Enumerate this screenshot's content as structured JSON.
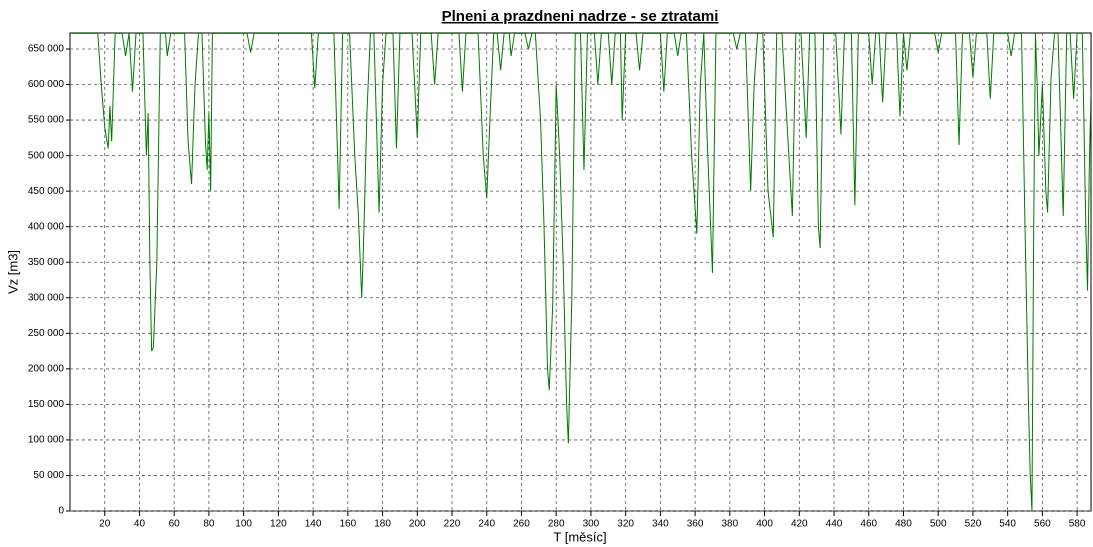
{
  "chart_data": {
    "type": "line",
    "title": "Plneni a prazdneni nadrze - se ztratami",
    "x_label": "T [měsíc]",
    "y_label": "Vz [m3]",
    "xlim": [
      0,
      588
    ],
    "ylim": [
      0,
      672500
    ],
    "xticks": [
      20,
      40,
      60,
      80,
      100,
      120,
      140,
      160,
      180,
      200,
      220,
      240,
      260,
      280,
      300,
      320,
      340,
      360,
      380,
      400,
      420,
      440,
      460,
      480,
      500,
      520,
      540,
      560,
      580
    ],
    "yticks": [
      {
        "value": 0,
        "label": "0"
      },
      {
        "value": 50000,
        "label": "50 000"
      },
      {
        "value": 100000,
        "label": "100 000"
      },
      {
        "value": 150000,
        "label": "150 000"
      },
      {
        "value": 200000,
        "label": "200 000"
      },
      {
        "value": 250000,
        "label": "250 000"
      },
      {
        "value": 300000,
        "label": "300 000"
      },
      {
        "value": 350000,
        "label": "350 000"
      },
      {
        "value": 400000,
        "label": "400 000"
      },
      {
        "value": 450000,
        "label": "450 000"
      },
      {
        "value": 500000,
        "label": "500 000"
      },
      {
        "value": 550000,
        "label": "550 000"
      },
      {
        "value": 600000,
        "label": "600 000"
      },
      {
        "value": 650000,
        "label": "650 000"
      }
    ],
    "grid": true,
    "x": [
      1,
      16,
      18,
      20,
      22,
      23,
      24,
      26,
      30,
      32,
      34,
      36,
      38,
      42,
      44,
      45,
      46,
      47,
      48,
      50,
      52,
      55,
      56,
      58,
      66,
      68,
      70,
      72,
      74,
      76,
      78,
      79,
      80,
      81,
      82,
      102,
      104,
      106,
      139,
      141,
      143,
      152,
      155,
      157,
      161,
      164,
      166,
      168,
      169,
      171,
      173,
      175,
      178,
      180,
      182,
      186,
      188,
      190,
      197,
      200,
      202,
      208,
      210,
      212,
      224,
      226,
      228,
      235,
      238,
      240,
      242,
      244,
      246,
      248,
      250,
      253,
      254,
      256,
      262,
      264,
      266,
      268,
      271,
      273,
      275,
      276,
      278,
      280,
      282,
      284,
      286,
      287,
      289,
      291,
      294,
      296,
      298,
      302,
      304,
      306,
      310,
      312,
      314,
      317,
      318,
      320,
      326,
      328,
      330,
      340,
      342,
      344,
      348,
      350,
      352,
      355,
      358,
      361,
      363,
      365,
      367,
      370,
      372,
      382,
      384,
      386,
      389,
      392,
      394,
      396,
      399,
      402,
      405,
      407,
      410,
      414,
      416,
      418,
      421,
      424,
      426,
      429,
      431,
      432,
      434,
      441,
      444,
      446,
      450,
      452,
      454,
      460,
      462,
      464,
      466,
      468,
      470,
      476,
      478,
      480,
      482,
      484,
      498,
      500,
      502,
      510,
      512,
      514,
      518,
      520,
      522,
      528,
      530,
      532,
      540,
      542,
      544,
      548,
      550,
      552,
      553,
      554,
      555,
      556,
      557,
      558,
      560,
      562,
      563,
      565,
      567,
      569,
      572,
      574,
      576,
      578,
      580,
      583,
      585,
      586,
      587,
      588
    ],
    "series": [
      {
        "name": "Vz",
        "color": "#007a00",
        "values": [
          672000,
          672000,
          600000,
          540000,
          510000,
          570000,
          520000,
          672000,
          672000,
          640000,
          672000,
          590000,
          672000,
          672000,
          500000,
          560000,
          350000,
          225000,
          230000,
          350000,
          672000,
          672000,
          640000,
          672000,
          672000,
          520000,
          460000,
          600000,
          672000,
          672000,
          520000,
          480000,
          560000,
          450000,
          672000,
          672000,
          645000,
          672000,
          672000,
          595000,
          672000,
          672000,
          425000,
          672000,
          672000,
          500000,
          420000,
          300000,
          370000,
          560000,
          672000,
          672000,
          420000,
          600000,
          672000,
          672000,
          510000,
          672000,
          672000,
          525000,
          672000,
          672000,
          600000,
          672000,
          672000,
          590000,
          672000,
          672000,
          500000,
          440000,
          560000,
          672000,
          672000,
          620000,
          672000,
          672000,
          640000,
          672000,
          672000,
          650000,
          672000,
          672000,
          550000,
          400000,
          200000,
          170000,
          290000,
          600000,
          500000,
          350000,
          150000,
          95000,
          300000,
          672000,
          672000,
          480000,
          672000,
          672000,
          600000,
          672000,
          672000,
          600000,
          672000,
          672000,
          550000,
          672000,
          672000,
          620000,
          672000,
          672000,
          590000,
          672000,
          672000,
          640000,
          672000,
          672000,
          500000,
          390000,
          600000,
          672000,
          520000,
          335000,
          672000,
          672000,
          650000,
          672000,
          672000,
          450000,
          600000,
          672000,
          672000,
          450000,
          385000,
          672000,
          672000,
          500000,
          415000,
          672000,
          672000,
          525000,
          672000,
          672000,
          400000,
          370000,
          672000,
          672000,
          530000,
          672000,
          672000,
          430000,
          672000,
          672000,
          600000,
          672000,
          672000,
          575000,
          672000,
          672000,
          555000,
          672000,
          620000,
          672000,
          672000,
          645000,
          672000,
          672000,
          515000,
          672000,
          672000,
          610000,
          672000,
          672000,
          580000,
          672000,
          672000,
          640000,
          672000,
          672000,
          400000,
          150000,
          50000,
          0,
          400000,
          672000,
          600000,
          500000,
          600000,
          450000,
          420000,
          610000,
          672000,
          672000,
          415000,
          672000,
          672000,
          580000,
          672000,
          672000,
          400000,
          310000,
          480000,
          590000
        ]
      }
    ]
  }
}
